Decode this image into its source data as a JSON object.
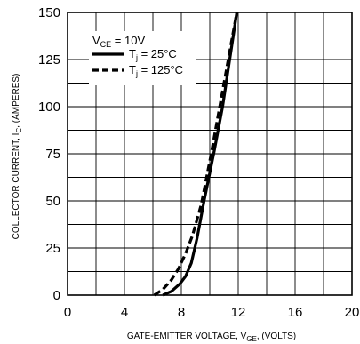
{
  "chart_data": {
    "type": "line",
    "xlabel": {
      "main": "GATE-EMITTER VOLTAGE, V",
      "sub": "GE",
      "tail": ", (VOLTS)"
    },
    "ylabel": {
      "main": "COLLECTOR CURRENT, I",
      "sub": "C",
      "tail": ", (AMPERES)"
    },
    "xlim": [
      0,
      20
    ],
    "ylim": [
      0,
      150
    ],
    "x_ticks": [
      0,
      4,
      8,
      12,
      16,
      20
    ],
    "x_tick_labels": [
      "0",
      "4",
      "8",
      "12",
      "16",
      "20"
    ],
    "y_ticks": [
      0,
      25,
      50,
      75,
      100,
      125,
      150
    ],
    "y_tick_labels": [
      "0",
      "25",
      "50",
      "75",
      "100",
      "125",
      "150"
    ],
    "grid": true,
    "legend": {
      "condition": {
        "main": "V",
        "sub": "CE",
        "tail": " = 10V"
      },
      "placement": "top-left"
    },
    "series": [
      {
        "label": {
          "main": "T",
          "sub": "j",
          "tail": " = 25°C"
        },
        "style": "solid",
        "color": "#000000",
        "points": [
          [
            6.7,
            0
          ],
          [
            7.3,
            2
          ],
          [
            7.9,
            6
          ],
          [
            8.3,
            10
          ],
          [
            8.7,
            17
          ],
          [
            9.1,
            30
          ],
          [
            9.6,
            50
          ],
          [
            10.3,
            76
          ],
          [
            10.9,
            100
          ],
          [
            11.4,
            125
          ],
          [
            11.9,
            150
          ]
        ]
      },
      {
        "label": {
          "main": "T",
          "sub": "j",
          "tail": " = 125°C"
        },
        "style": "dashed",
        "color": "#000000",
        "points": [
          [
            6.1,
            0
          ],
          [
            6.7,
            3
          ],
          [
            7.3,
            8
          ],
          [
            7.8,
            14
          ],
          [
            8.3,
            22
          ],
          [
            8.8,
            32
          ],
          [
            9.4,
            48
          ],
          [
            10.1,
            75
          ],
          [
            10.7,
            100
          ],
          [
            11.3,
            125
          ],
          [
            11.9,
            150
          ]
        ]
      }
    ]
  }
}
